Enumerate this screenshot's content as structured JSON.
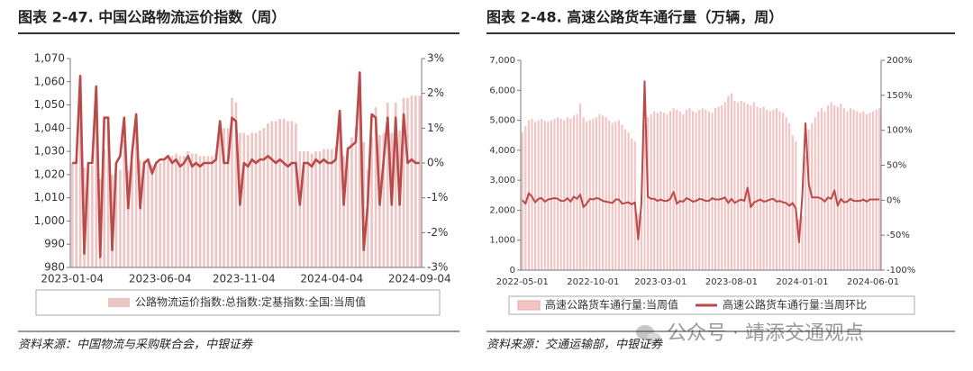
{
  "chart_data": [
    {
      "type": "combo",
      "title": "图表 2-47. 中国公路物流运价指数（周）",
      "source": "资料来源：中国物流与采购联合会，中银证券",
      "categories": [
        "2023-01-04",
        null,
        null,
        null,
        null,
        null,
        null,
        null,
        null,
        null,
        null,
        null,
        null,
        null,
        null,
        null,
        null,
        null,
        null,
        null,
        null,
        null,
        "2023-06-04",
        null,
        null,
        null,
        null,
        null,
        null,
        null,
        null,
        null,
        null,
        null,
        null,
        null,
        null,
        null,
        null,
        null,
        null,
        null,
        null,
        "2023-11-04",
        null,
        null,
        null,
        null,
        null,
        null,
        null,
        null,
        null,
        null,
        null,
        null,
        null,
        null,
        null,
        null,
        null,
        null,
        null,
        null,
        null,
        "2024-04-04",
        null,
        null,
        null,
        null,
        null,
        null,
        null,
        null,
        null,
        null,
        null,
        null,
        null,
        null,
        null,
        null,
        null,
        null,
        null,
        null,
        null,
        "2024-09-04"
      ],
      "series": [
        {
          "name": "公路物流运价指数:总指数:定基指数:全国:当周值",
          "type": "bar",
          "color": "#eec5c5",
          "values": [
            1025,
            1025,
            1050,
            1023,
            1023,
            1024,
            1046,
            1018,
            1031,
            1045,
            1020,
            1020,
            1022,
            1035,
            1022,
            1025,
            1039,
            1026,
            1026,
            1027,
            1024,
            1024,
            1025,
            1026,
            1028,
            1028,
            1029,
            1028,
            1028,
            1030,
            1029,
            1029,
            1028,
            1028,
            1028,
            1028,
            1029,
            1041,
            1040,
            1040,
            1053,
            1051,
            1038,
            1038,
            1037,
            1038,
            1038,
            1039,
            1040,
            1042,
            1043,
            1043,
            1044,
            1044,
            1043,
            1043,
            1042,
            1030,
            1030,
            1030,
            1029,
            1030,
            1030,
            1031,
            1031,
            1031,
            1032,
            1040,
            1028,
            1032,
            1036,
            1040,
            1060,
            1034,
            1022,
            1036,
            1049,
            1037,
            1038,
            1051,
            1038,
            1051,
            1039,
            1053,
            1053,
            1054,
            1054,
            1054
          ]
        },
        {
          "type": "line",
          "axis": "y2",
          "color": "#b94a4a",
          "values": [
            0,
            0,
            2.5,
            -2.6,
            0,
            0,
            2.2,
            -2.7,
            1.3,
            1.3,
            -2.5,
            0,
            0.2,
            1.3,
            -1.3,
            0.3,
            1.4,
            -1.3,
            0,
            0.1,
            -0.3,
            0,
            0.1,
            0.1,
            0.2,
            0,
            0.1,
            -0.1,
            0,
            0.2,
            -0.1,
            0,
            -0.1,
            0,
            0,
            0,
            0.1,
            1.2,
            0,
            0,
            1.3,
            1.2,
            -1.2,
            0,
            -0.1,
            0.1,
            0,
            0.1,
            0.1,
            0.2,
            0.1,
            0,
            0.1,
            0,
            -0.1,
            0,
            0,
            -1.2,
            0,
            0,
            -0.1,
            0.1,
            0,
            0.1,
            0,
            0,
            0.1,
            1.5,
            -1.2,
            0.4,
            0.5,
            0.6,
            2.6,
            -2.5,
            -1.2,
            1.4,
            1.3,
            -1.2,
            0.1,
            1.3,
            -1.2,
            1.3,
            -1.2,
            1.4,
            0,
            0.1,
            0,
            0
          ]
        }
      ],
      "ylim": [
        980,
        1070
      ],
      "yticks": [
        980,
        990,
        {
          "value": 1000,
          "label": "1,000"
        },
        {
          "value": 1010,
          "label": "1,010"
        },
        {
          "value": 1020,
          "label": "1,020"
        },
        {
          "value": 1030,
          "label": "1,030"
        },
        {
          "value": 1040,
          "label": "1,040"
        },
        {
          "value": 1050,
          "label": "1,050"
        },
        {
          "value": 1060,
          "label": "1,060"
        },
        {
          "value": 1070,
          "label": "1,070"
        }
      ],
      "y2lim": [
        -3,
        3
      ],
      "y2ticks": [
        {
          "value": -3,
          "label": "-3%"
        },
        {
          "value": -2,
          "label": "-2%"
        },
        {
          "value": -1,
          "label": "-1%"
        },
        {
          "value": 0,
          "label": "0%"
        },
        {
          "value": 1,
          "label": "1%"
        },
        {
          "value": 2,
          "label": "2%"
        },
        {
          "value": 3,
          "label": "3%"
        }
      ],
      "grid": false
    },
    {
      "type": "combo",
      "title": "图表 2-48. 高速公路货车通行量（万辆，周）",
      "source": "资料来源：交通运输部，中银证券",
      "categories": [
        "2022-05-01",
        null,
        null,
        null,
        null,
        null,
        null,
        null,
        null,
        null,
        null,
        null,
        null,
        null,
        null,
        null,
        null,
        null,
        null,
        null,
        null,
        null,
        "2022-10-01",
        null,
        null,
        null,
        null,
        null,
        null,
        null,
        null,
        null,
        null,
        null,
        null,
        null,
        null,
        null,
        null,
        null,
        null,
        null,
        null,
        "2023-03-01",
        null,
        null,
        null,
        null,
        null,
        null,
        null,
        null,
        null,
        null,
        null,
        null,
        null,
        null,
        null,
        null,
        null,
        null,
        null,
        null,
        null,
        "2023-08-01",
        null,
        null,
        null,
        null,
        null,
        null,
        null,
        null,
        null,
        null,
        null,
        null,
        null,
        null,
        null,
        null,
        null,
        null,
        null,
        null,
        null,
        "2024-01-01",
        null,
        null,
        null,
        null,
        null,
        null,
        null,
        null,
        null,
        null,
        null,
        null,
        null,
        null,
        null,
        null,
        null,
        null,
        null,
        null,
        null,
        "2024-06-01",
        null,
        null
      ],
      "series": [
        {
          "name": "高速公路货车通行量:当周值",
          "type": "bar",
          "color": "#f2c4c4",
          "values": [
            4600,
            4800,
            5000,
            5050,
            4950,
            5000,
            5050,
            4980,
            4950,
            5000,
            5050,
            5100,
            5050,
            5000,
            5100,
            5050,
            5150,
            5200,
            5550,
            5100,
            4950,
            5000,
            5050,
            5100,
            5200,
            5150,
            5100,
            5000,
            4900,
            4950,
            5000,
            4850,
            4700,
            4600,
            4400,
            4300,
            1900,
            1800,
            4900,
            5100,
            5200,
            5300,
            5250,
            5300,
            5250,
            5200,
            5300,
            5400,
            5350,
            5300,
            5200,
            5350,
            5400,
            5300,
            5250,
            5350,
            5400,
            5350,
            5300,
            5250,
            5400,
            5450,
            5500,
            5600,
            5800,
            5900,
            5650,
            5600,
            5650,
            5600,
            5550,
            5500,
            5600,
            5450,
            5400,
            5450,
            5350,
            5300,
            5350,
            5400,
            5300,
            5250,
            5100,
            4900,
            4500,
            4300,
            1700,
            1800,
            3800,
            4700,
            4900,
            5100,
            5300,
            5400,
            5300,
            5500,
            5600,
            5500,
            5450,
            5550,
            5400,
            5300,
            5400,
            5350,
            5300,
            5250,
            5300,
            5200,
            5250,
            5300,
            5350,
            5400
          ]
        },
        {
          "name": "高速公路货车通行量:当周环比",
          "type": "line",
          "axis": "y2",
          "color": "#b94a4a",
          "values": [
            0,
            -5,
            10,
            5,
            -3,
            2,
            3,
            -2,
            1,
            2,
            3,
            2,
            -1,
            -1,
            3,
            -2,
            5,
            2,
            8,
            -10,
            -5,
            2,
            1,
            3,
            2,
            -1,
            -2,
            -3,
            -4,
            1,
            1,
            -5,
            -4,
            -3,
            -6,
            -3,
            -56,
            -5,
            170,
            5,
            2,
            2,
            -1,
            1,
            -1,
            -1,
            2,
            12,
            -5,
            -1,
            -2,
            3,
            1,
            -2,
            -1,
            2,
            1,
            -1,
            -1,
            3,
            1,
            1,
            2,
            4,
            -4,
            2,
            -4,
            -1,
            1,
            -1,
            18,
            -10,
            -3,
            -1,
            1,
            -2,
            -1,
            1,
            2,
            -2,
            -1,
            -3,
            -4,
            -8,
            -4,
            -12,
            -60,
            6,
            110,
            24,
            4,
            4,
            4,
            2,
            -2,
            4,
            2,
            14,
            -8,
            2,
            -3,
            -2,
            2,
            -1,
            -1,
            -1,
            1,
            -2,
            1,
            1,
            1,
            1
          ]
        }
      ],
      "ylim": [
        0,
        7000
      ],
      "yticks": [
        0,
        {
          "value": 1000,
          "label": "1,000"
        },
        {
          "value": 2000,
          "label": "2,000"
        },
        {
          "value": 3000,
          "label": "3,000"
        },
        {
          "value": 4000,
          "label": "4,000"
        },
        {
          "value": 5000,
          "label": "5,000"
        },
        {
          "value": 6000,
          "label": "6,000"
        },
        {
          "value": 7000,
          "label": "7,000"
        }
      ],
      "y2lim": [
        -100,
        200
      ],
      "y2ticks": [
        {
          "value": -100,
          "label": "-100%"
        },
        {
          "value": -50,
          "label": "-50%"
        },
        {
          "value": 0,
          "label": "0%"
        },
        {
          "value": 50,
          "label": "50%"
        },
        {
          "value": 100,
          "label": "100%"
        },
        {
          "value": 150,
          "label": "150%"
        },
        {
          "value": 200,
          "label": "200%"
        }
      ],
      "grid": false
    }
  ],
  "watermark": "公众号 · 靖添交通观点"
}
